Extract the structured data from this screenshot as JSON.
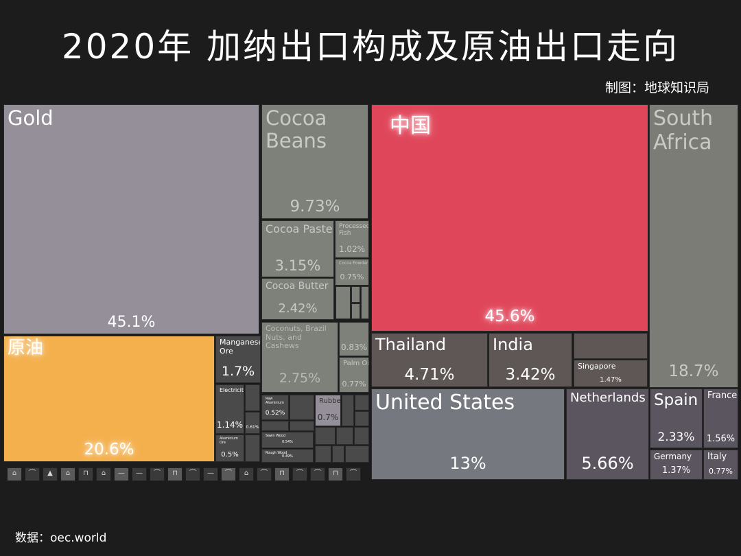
{
  "title": "2020年 加纳出口构成及原油出口走向",
  "credit": "制图：地球知识局",
  "source": "数据：oec.world",
  "chart_data": [
    {
      "type": "treemap",
      "name": "exports",
      "items": [
        {
          "label": "Gold",
          "value": 45.1,
          "value_text": "45.1%"
        },
        {
          "label": "原油",
          "value": 20.6,
          "value_text": "20.6%"
        },
        {
          "label": "Cocoa Beans",
          "value": 9.73,
          "value_text": "9.73%"
        },
        {
          "label": "Cocoa Paste",
          "value": 3.15,
          "value_text": "3.15%"
        },
        {
          "label": "Cocoa Butter",
          "value": 2.42,
          "value_text": "2.42%"
        },
        {
          "label": "Processed Fish",
          "value": 1.02,
          "value_text": "1.02%"
        },
        {
          "label": "Cocoa Powder",
          "value": 0.75,
          "value_text": "0.75%"
        },
        {
          "label": "Coconuts, Brazil Nuts, and Cashews",
          "value": 2.75,
          "value_text": "2.75%"
        },
        {
          "label": "",
          "value": 0.83,
          "value_text": "0.83%"
        },
        {
          "label": "Palm Oil",
          "value": 0.77,
          "value_text": "0.77%"
        },
        {
          "label": "Manganese Ore",
          "value": 1.7,
          "value_text": "1.7%"
        },
        {
          "label": "Electricity",
          "value": 1.14,
          "value_text": "1.14%"
        },
        {
          "label": "",
          "value": 0.61,
          "value_text": "0.61%"
        },
        {
          "label": "Aluminium Ore",
          "value": 0.5,
          "value_text": "0.5%"
        },
        {
          "label": "Raw Aluminium",
          "value": 0.52,
          "value_text": "0.52%"
        },
        {
          "label": "Rubber",
          "value": 0.7,
          "value_text": "0.7%"
        },
        {
          "label": "Sawn Wood",
          "value": 0.54,
          "value_text": "0.54%"
        },
        {
          "label": "Rough Wood",
          "value": 0.49,
          "value_text": "0.49%"
        }
      ]
    },
    {
      "type": "treemap",
      "name": "crude-oil-destinations",
      "items": [
        {
          "label": "中国",
          "value": 45.6,
          "value_text": "45.6%"
        },
        {
          "label": "South Africa",
          "value": 18.7,
          "value_text": "18.7%"
        },
        {
          "label": "United States",
          "value": 13,
          "value_text": "13%"
        },
        {
          "label": "Netherlands",
          "value": 5.66,
          "value_text": "5.66%"
        },
        {
          "label": "Thailand",
          "value": 4.71,
          "value_text": "4.71%"
        },
        {
          "label": "India",
          "value": 3.42,
          "value_text": "3.42%"
        },
        {
          "label": "Spain",
          "value": 2.33,
          "value_text": "2.33%"
        },
        {
          "label": "France",
          "value": 1.56,
          "value_text": "1.56%"
        },
        {
          "label": "Singapore",
          "value": 1.47,
          "value_text": "1.47%"
        },
        {
          "label": "Germany",
          "value": 1.37,
          "value_text": "1.37%"
        },
        {
          "label": "Italy",
          "value": 0.77,
          "value_text": "0.77%"
        }
      ]
    }
  ],
  "colors": {
    "gold": "#948f99",
    "crude": "#f4b04d",
    "cocoa": "#7e807a",
    "mineral": "#4a4a4a",
    "china": "#e0465a",
    "south_africa": "#7b7c75",
    "asia": "#5e5756",
    "united_states": "#76787f",
    "europe": "#5b5560"
  }
}
